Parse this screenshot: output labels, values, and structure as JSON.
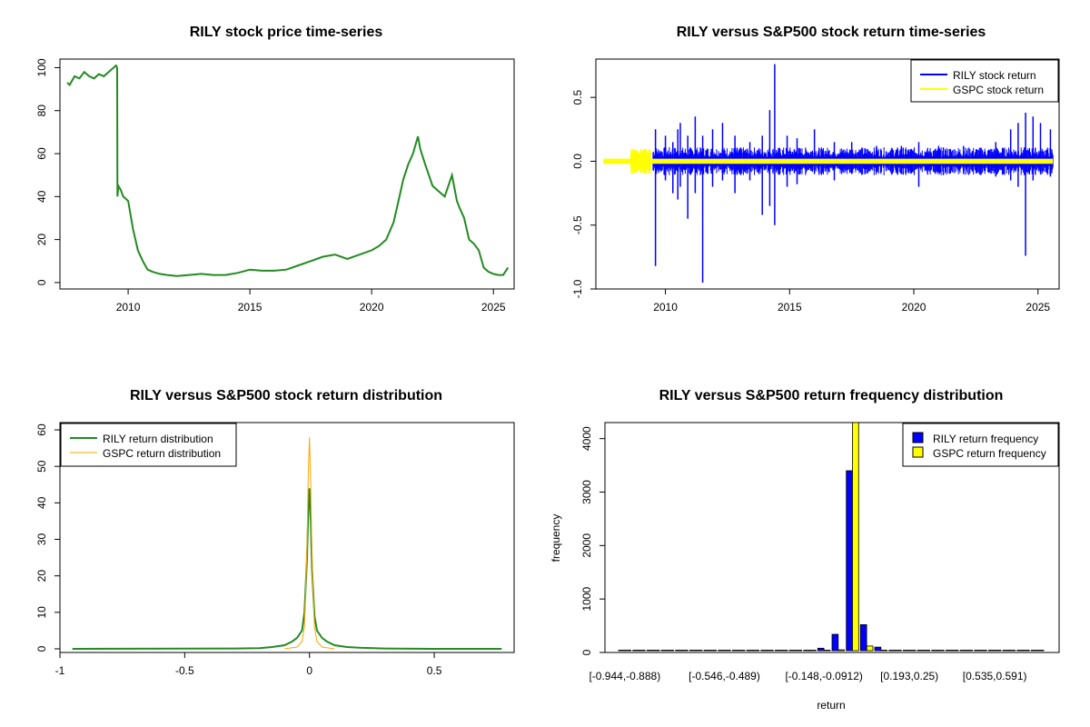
{
  "chart_data": [
    {
      "type": "line",
      "title": "RILY stock price time-series",
      "xlabel": "",
      "ylabel": "",
      "xlim": [
        2007.2,
        2025.85
      ],
      "ylim": [
        -3,
        104
      ],
      "x_ticks": [
        2010,
        2015,
        2020,
        2025
      ],
      "y_ticks": [
        0,
        20,
        40,
        60,
        80,
        100
      ],
      "grid": false,
      "series": [
        {
          "color": "#228B22",
          "x": [
            2007.5,
            2007.6,
            2007.8,
            2008.0,
            2008.2,
            2008.4,
            2008.6,
            2008.8,
            2009.0,
            2009.2,
            2009.4,
            2009.5,
            2009.55,
            2009.56,
            2009.6,
            2009.7,
            2009.8,
            2010.0,
            2010.2,
            2010.4,
            2010.6,
            2010.8,
            2011.0,
            2011.3,
            2011.6,
            2012.0,
            2012.5,
            2013.0,
            2013.5,
            2014.0,
            2014.5,
            2015.0,
            2015.5,
            2016.0,
            2016.5,
            2017.0,
            2017.5,
            2018.0,
            2018.5,
            2019.0,
            2019.5,
            2020.0,
            2020.3,
            2020.6,
            2020.9,
            2021.1,
            2021.3,
            2021.5,
            2021.7,
            2021.9,
            2022.0,
            2022.2,
            2022.5,
            2022.8,
            2023.0,
            2023.3,
            2023.5,
            2023.6,
            2023.8,
            2024.0,
            2024.2,
            2024.4,
            2024.6,
            2024.8,
            2025.0,
            2025.2,
            2025.4,
            2025.6
          ],
          "values": [
            93,
            92,
            96,
            95,
            98,
            96,
            95,
            97,
            96,
            98,
            100,
            101,
            100,
            40,
            45,
            43,
            40,
            38,
            25,
            15,
            10,
            6,
            5,
            4,
            3.5,
            3,
            3.5,
            4,
            3.5,
            3.5,
            4.5,
            6,
            5.5,
            5.5,
            6,
            8,
            10,
            12,
            13,
            11,
            13,
            15,
            17,
            20,
            28,
            38,
            48,
            55,
            60,
            68,
            62,
            55,
            45,
            42,
            40,
            50,
            38,
            35,
            30,
            20,
            18,
            15,
            7,
            5,
            4,
            3.5,
            3.5,
            7
          ]
        }
      ]
    },
    {
      "type": "line",
      "title": "RILY versus S&P500 stock return time-series",
      "xlabel": "",
      "ylabel": "",
      "xlim": [
        2007.2,
        2025.85
      ],
      "ylim": [
        -1.0,
        0.8
      ],
      "x_ticks": [
        2010,
        2015,
        2020,
        2025
      ],
      "y_ticks": [
        -1.0,
        -0.5,
        0.0,
        0.5
      ],
      "legend_position": "top-right",
      "grid": false,
      "series": [
        {
          "name": "RILY stock return",
          "color": "#0000FF",
          "spikes": [
            {
              "x": 2009.6,
              "lo": -0.82,
              "hi": 0.25
            },
            {
              "x": 2010.0,
              "lo": -0.15,
              "hi": 0.2
            },
            {
              "x": 2010.3,
              "lo": -0.25,
              "hi": 0.15
            },
            {
              "x": 2010.5,
              "lo": -0.3,
              "hi": 0.25
            },
            {
              "x": 2010.6,
              "lo": -0.2,
              "hi": 0.3
            },
            {
              "x": 2010.9,
              "lo": -0.45,
              "hi": 0.2
            },
            {
              "x": 2011.2,
              "lo": -0.25,
              "hi": 0.35
            },
            {
              "x": 2011.5,
              "lo": -0.95,
              "hi": 0.2
            },
            {
              "x": 2011.9,
              "lo": -0.2,
              "hi": 0.25
            },
            {
              "x": 2012.3,
              "lo": -0.15,
              "hi": 0.3
            },
            {
              "x": 2012.8,
              "lo": -0.25,
              "hi": 0.2
            },
            {
              "x": 2013.4,
              "lo": -0.15,
              "hi": 0.15
            },
            {
              "x": 2013.9,
              "lo": -0.42,
              "hi": 0.2
            },
            {
              "x": 2014.2,
              "lo": -0.35,
              "hi": 0.4
            },
            {
              "x": 2014.4,
              "lo": -0.5,
              "hi": 0.76
            },
            {
              "x": 2014.9,
              "lo": -0.2,
              "hi": 0.2
            },
            {
              "x": 2015.3,
              "lo": -0.18,
              "hi": 0.18
            },
            {
              "x": 2016.0,
              "lo": -0.1,
              "hi": 0.25
            },
            {
              "x": 2016.8,
              "lo": -0.15,
              "hi": 0.15
            },
            {
              "x": 2017.5,
              "lo": -0.1,
              "hi": 0.15
            },
            {
              "x": 2018.5,
              "lo": -0.08,
              "hi": 0.12
            },
            {
              "x": 2019.5,
              "lo": -0.1,
              "hi": 0.12
            },
            {
              "x": 2020.2,
              "lo": -0.2,
              "hi": 0.15
            },
            {
              "x": 2021.0,
              "lo": -0.08,
              "hi": 0.12
            },
            {
              "x": 2022.0,
              "lo": -0.1,
              "hi": 0.12
            },
            {
              "x": 2023.3,
              "lo": -0.12,
              "hi": 0.15
            },
            {
              "x": 2023.9,
              "lo": -0.15,
              "hi": 0.25
            },
            {
              "x": 2024.2,
              "lo": -0.2,
              "hi": 0.3
            },
            {
              "x": 2024.5,
              "lo": -0.74,
              "hi": 0.38
            },
            {
              "x": 2024.8,
              "lo": -0.15,
              "hi": 0.35
            },
            {
              "x": 2025.1,
              "lo": -0.1,
              "hi": 0.3
            },
            {
              "x": 2025.5,
              "lo": -0.12,
              "hi": 0.25
            }
          ]
        },
        {
          "name": "GSPC stock return",
          "color": "#FFFF00",
          "band": {
            "x_start": 2007.5,
            "x_end": 2025.6,
            "amplitude": 0.02
          },
          "burst": {
            "x_start": 2008.6,
            "x_end": 2009.4,
            "amplitude": 0.1
          }
        }
      ]
    },
    {
      "type": "line",
      "title": "RILY versus S&P500 stock return distribution",
      "xlabel": "",
      "ylabel": "",
      "xlim": [
        -1.0,
        0.82
      ],
      "ylim": [
        -1,
        62
      ],
      "x_ticks": [
        -1.0,
        -0.5,
        0.0,
        0.5
      ],
      "y_ticks": [
        0,
        10,
        20,
        30,
        40,
        50,
        60
      ],
      "legend_position": "top-left",
      "grid": false,
      "series": [
        {
          "name": "RILY return distribution",
          "color": "#228B22",
          "x": [
            -0.95,
            -0.3,
            -0.2,
            -0.15,
            -0.1,
            -0.07,
            -0.05,
            -0.03,
            -0.02,
            -0.01,
            -0.005,
            0.0,
            0.005,
            0.01,
            0.02,
            0.03,
            0.05,
            0.07,
            0.1,
            0.15,
            0.2,
            0.3,
            0.5,
            0.77
          ],
          "values": [
            0,
            0.1,
            0.2,
            0.5,
            1,
            2,
            3,
            5,
            10,
            25,
            38,
            44,
            35,
            22,
            9,
            5,
            3,
            2,
            1,
            0.5,
            0.3,
            0.1,
            0,
            0
          ]
        },
        {
          "name": "GSPC return distribution",
          "color": "#FFA500",
          "x": [
            -0.1,
            -0.05,
            -0.03,
            -0.02,
            -0.01,
            -0.005,
            0.0,
            0.005,
            0.01,
            0.02,
            0.03,
            0.05,
            0.1
          ],
          "values": [
            0,
            0.5,
            2,
            6,
            28,
            48,
            58,
            45,
            25,
            6,
            2,
            0.5,
            0
          ]
        }
      ]
    },
    {
      "type": "bar",
      "title": "RILY versus S&P500 return frequency distribution",
      "xlabel": "return",
      "ylabel": "frequency",
      "ylim": [
        0,
        4300
      ],
      "y_ticks": [
        0,
        1000,
        2000,
        3000,
        4000
      ],
      "legend_position": "top-right",
      "grid": false,
      "tick_labels": [
        "[-0.944,-0.888)",
        "[-0.546,-0.489)",
        "[-0.148,-0.0912)",
        "[0.193,0.25)",
        "[0.535,0.591)"
      ],
      "tick_label_bins": [
        0,
        7,
        14,
        20,
        26
      ],
      "n_bins": 30,
      "series": [
        {
          "name": "RILY return frequency",
          "color": "#0000FF",
          "values": [
            2,
            1,
            1,
            1,
            1,
            1,
            1,
            2,
            2,
            3,
            5,
            8,
            15,
            30,
            80,
            340,
            3400,
            520,
            100,
            30,
            12,
            6,
            4,
            3,
            2,
            2,
            1,
            1,
            1,
            1
          ]
        },
        {
          "name": "GSPC return frequency",
          "color": "#FFFF00",
          "values": [
            0,
            0,
            0,
            0,
            0,
            0,
            0,
            0,
            0,
            0,
            0,
            0,
            0,
            0,
            10,
            50,
            4400,
            120,
            5,
            0,
            0,
            0,
            0,
            0,
            0,
            0,
            0,
            0,
            0,
            0
          ]
        }
      ]
    }
  ]
}
